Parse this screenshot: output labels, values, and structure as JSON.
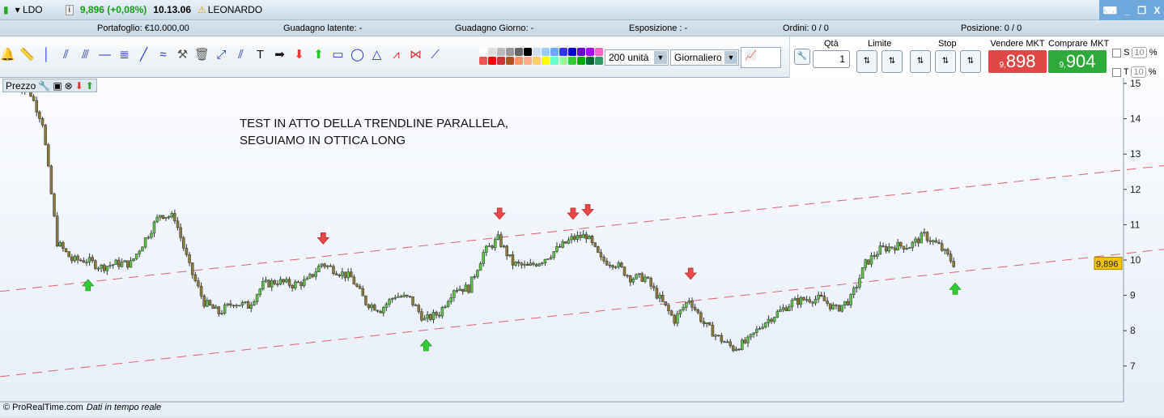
{
  "title": {
    "symbol": "LDO",
    "price": "9,896 (+0,08%)",
    "time": "10.13.06",
    "name": "LEONARDO"
  },
  "info": {
    "portafoglio": "Portafoglio: €10.000,00",
    "latente": "Guadagno latente: -",
    "giorno": "Guadagno Giorno: -",
    "esposizione": "Esposizione : -",
    "ordini": "Ordini: 0   / 0",
    "posizione": "Posizione: 0   / 0"
  },
  "toolbar": {
    "tools": [
      "bell-icon",
      "ruler-icon",
      "vertical-line-icon",
      "horizontal-channel-icon",
      "parallel-lines-icon",
      "horizontal-line-icon",
      "fibonacci-icon",
      "trendline-icon",
      "regression-channel-icon",
      "tools-icon",
      "trash-icon",
      "segment-icon",
      "parallel-icon",
      "text-icon",
      "arrow-right-icon",
      "arrow-down-icon",
      "arrow-up-icon",
      "rectangle-icon",
      "ellipse-icon",
      "triangle-icon",
      "fib-fan-icon",
      "pattern-icon",
      "ray-icon"
    ],
    "quantity": "200 unità",
    "period": "Giornaliero"
  },
  "trade": {
    "qta_label": "Qtà",
    "qta": "1",
    "limite": "Limite",
    "stop": "Stop",
    "sell_label": "Vendere MKT",
    "sell_int": "9,",
    "sell_dec": "898",
    "buy_label": "Comprare MKT",
    "buy_int": "9,",
    "buy_dec": "904",
    "s": "S",
    "t": "T",
    "s_val": "10",
    "t_val": "10",
    "pct": "%",
    "sell_color": "#e04848",
    "buy_color": "#2eaa3a"
  },
  "panel": {
    "label": "Prezzo"
  },
  "note": {
    "line1": "TEST IN ATTO DELLA TRENDLINE PARALLELA,",
    "line2": "SEGUIAMO IN OTTICA LONG"
  },
  "footer": {
    "copyright": "© ProRealTime.com",
    "realtime": "Dati in tempo reale"
  },
  "chart_data": {
    "type": "candlestick",
    "yticks": [
      15,
      14,
      13,
      12,
      11,
      10,
      9,
      8,
      7
    ],
    "ylim": [
      6.2,
      15.15
    ],
    "last_price": "9,896",
    "closes": [
      14.85,
      14.9,
      13.9,
      10.5,
      10.0,
      10.0,
      9.8,
      9.9,
      9.9,
      10.6,
      11.3,
      11.2,
      9.8,
      8.8,
      8.5,
      8.8,
      8.7,
      9.3,
      9.4,
      9.3,
      9.4,
      9.9,
      9.7,
      9.5,
      8.8,
      8.6,
      9.0,
      8.9,
      8.3,
      8.5,
      9.2,
      9.2,
      10.2,
      10.6,
      9.9,
      9.8,
      10.0,
      10.3,
      10.6,
      10.7,
      10.0,
      9.9,
      9.5,
      9.5,
      8.9,
      8.3,
      8.9,
      8.2,
      7.8,
      7.5,
      7.7,
      8.2,
      8.5,
      8.8,
      8.9,
      8.9,
      8.6,
      8.9,
      9.9,
      10.3,
      10.4,
      10.4,
      10.7,
      10.4,
      9.9
    ],
    "trendlines": [
      {
        "from": 9.11,
        "to": 12.55,
        "color": "#e06070",
        "style": "dashed"
      },
      {
        "from": 6.7,
        "to": 10.18,
        "color": "#e06070",
        "style": "dashed"
      }
    ],
    "markers": [
      {
        "type": "sell",
        "index": 21
      },
      {
        "type": "sell",
        "index": 33
      },
      {
        "type": "sell",
        "index": 38
      },
      {
        "type": "sell",
        "index": 39
      },
      {
        "type": "sell",
        "index": 46
      },
      {
        "type": "buy",
        "index": 5
      },
      {
        "type": "buy",
        "index": 28
      },
      {
        "type": "buy",
        "index": 64
      }
    ],
    "up_color": "#5cc24a",
    "down_color": "#8c7a3a"
  }
}
